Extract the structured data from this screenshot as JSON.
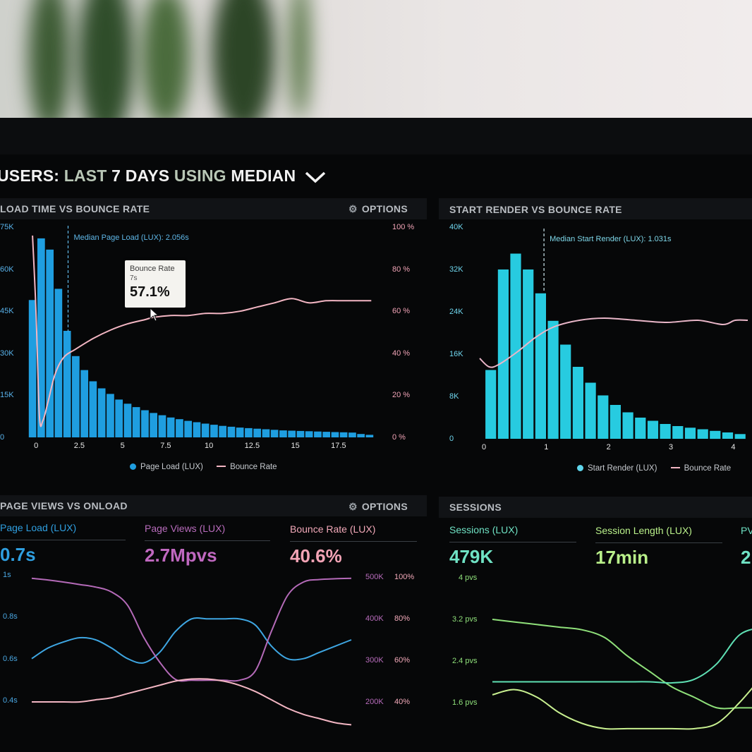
{
  "heading": {
    "users": "USERS:",
    "last": "LAST",
    "days": "7 DAYS",
    "using": "USING",
    "median": "MEDIAN"
  },
  "panels": {
    "load_vs_bounce": {
      "title": "LOAD TIME VS BOUNCE RATE",
      "options": "OPTIONS"
    },
    "start_vs_bounce": {
      "title": "START RENDER VS BOUNCE RATE"
    },
    "views_vs_onload": {
      "title": "PAGE VIEWS VS ONLOAD",
      "options": "OPTIONS"
    },
    "sessions": {
      "title": "SESSIONS"
    }
  },
  "tooltip": {
    "label": "Bounce Rate",
    "sub": "7s",
    "value": "57.1%"
  },
  "metrics_left": [
    {
      "label": "Page Load (LUX)",
      "value": "0.7s",
      "color": "#2f9fe0"
    },
    {
      "label": "Page Views (LUX)",
      "value": "2.7Mpvs",
      "color": "#c068c0"
    },
    {
      "label": "Bounce Rate (LUX)",
      "value": "40.6%",
      "color": "#f2a3b5"
    }
  ],
  "metrics_right": [
    {
      "label": "Sessions (LUX)",
      "value": "479K",
      "color": "#6fe2c4"
    },
    {
      "label": "Session Length (LUX)",
      "value": "17min",
      "color": "#b9f08a"
    },
    {
      "label": "PV",
      "value": "2",
      "color": "#6fe2c4"
    }
  ],
  "colors": {
    "blue": "#1f9ee0",
    "cyan": "#27cbe0",
    "pink": "#f3b6c3",
    "purple": "#b46ab8",
    "green": "#8fe07a",
    "mint": "#5fe0b4",
    "lightblue": "#3ea6e2"
  },
  "chart_data": [
    {
      "type": "bar",
      "title": "LOAD TIME VS BOUNCE RATE",
      "annotation": "Median Page Load (LUX): 2.056s",
      "median_x": 2.056,
      "x_ticks": [
        "0",
        "2.5",
        "5",
        "7.5",
        "10",
        "12.5",
        "15",
        "17.5"
      ],
      "y_ticks_left": [
        "0",
        "15K",
        "30K",
        "45K",
        "60K",
        "75K"
      ],
      "y_ticks_right": [
        "0 %",
        "20 %",
        "40 %",
        "60 %",
        "80 %",
        "100 %"
      ],
      "xlim": [
        -0.25,
        19.75
      ],
      "ylim_left": [
        0,
        75000
      ],
      "ylim_right": [
        0,
        100
      ],
      "legend": [
        "Page Load (LUX)",
        "Bounce Rate"
      ],
      "bin_width": 0.5,
      "x": [
        0,
        0.5,
        1,
        1.5,
        2,
        2.5,
        3,
        3.5,
        4,
        4.5,
        5,
        5.5,
        6,
        6.5,
        7,
        7.5,
        8,
        8.5,
        9,
        9.5,
        10,
        10.5,
        11,
        11.5,
        12,
        12.5,
        13,
        13.5,
        14,
        14.5,
        15,
        15.5,
        16,
        16.5,
        17,
        17.5,
        18,
        18.5,
        19,
        19.5
      ],
      "series": [
        {
          "name": "Page Load (LUX)",
          "values": [
            49000,
            71000,
            67000,
            53000,
            38000,
            29000,
            24000,
            20000,
            17500,
            15500,
            13500,
            12000,
            10800,
            9700,
            8700,
            7900,
            7100,
            6500,
            5900,
            5400,
            4900,
            4500,
            4100,
            3800,
            3500,
            3300,
            3100,
            2900,
            2700,
            2500,
            2400,
            2300,
            2200,
            2100,
            2000,
            1900,
            1800,
            1700,
            1200,
            900
          ]
        },
        {
          "name": "Bounce Rate",
          "x": [
            0,
            0.2,
            0.4,
            0.6,
            0.9,
            1.3,
            1.8,
            2.5,
            3.5,
            4.5,
            5.5,
            6.5,
            7,
            8,
            9,
            10,
            11,
            12,
            13,
            14,
            15,
            16,
            17,
            18,
            19,
            19.6
          ],
          "values": [
            96,
            60,
            10,
            8,
            17,
            30,
            38,
            42,
            47,
            51,
            54,
            56,
            57.1,
            58,
            58,
            59,
            59,
            60,
            62,
            64,
            66,
            64,
            65,
            65,
            65,
            65
          ]
        }
      ]
    },
    {
      "type": "bar",
      "title": "START RENDER VS BOUNCE RATE",
      "annotation": "Median Start Render (LUX): 1.031s",
      "median_x": 1.031,
      "x_ticks": [
        "0",
        "1",
        "2",
        "3",
        "4"
      ],
      "y_ticks_left": [
        "0",
        "8K",
        "16K",
        "24K",
        "32K",
        "40K"
      ],
      "xlim": [
        0,
        4.3
      ],
      "ylim_left": [
        0,
        40000
      ],
      "legend": [
        "Start Render (LUX)",
        "Bounce Rate"
      ],
      "bin_width": 0.2,
      "x": [
        0.2,
        0.4,
        0.6,
        0.8,
        1.0,
        1.2,
        1.4,
        1.6,
        1.8,
        2.0,
        2.2,
        2.4,
        2.6,
        2.8,
        3.0,
        3.2,
        3.4,
        3.6,
        3.8,
        4.0,
        4.2
      ],
      "series": [
        {
          "name": "Start Render (LUX)",
          "values": [
            13000,
            32000,
            35000,
            32000,
            27500,
            22300,
            17800,
            13600,
            10600,
            8200,
            6400,
            5000,
            4000,
            3400,
            2800,
            2400,
            2100,
            1800,
            1500,
            1200,
            900
          ]
        },
        {
          "name": "Bounce Rate",
          "x": [
            0,
            0.15,
            0.3,
            0.6,
            0.9,
            1.2,
            1.6,
            2,
            2.5,
            3,
            3.5,
            3.9,
            4.1,
            4.3
          ],
          "values": [
            38,
            34,
            35,
            41,
            48,
            53,
            56,
            57,
            56,
            55,
            56,
            54,
            56,
            56
          ]
        }
      ]
    },
    {
      "type": "line",
      "title": "PAGE VIEWS VS ONLOAD",
      "y_ticks_left": [
        "0.4s",
        "0.6s",
        "0.8s",
        "1s"
      ],
      "y_ticks_right_views": [
        "200K",
        "300K",
        "400K",
        "500K"
      ],
      "y_ticks_right_rate": [
        "40%",
        "60%",
        "80%",
        "100%"
      ],
      "x": [
        0,
        1,
        2,
        3,
        4,
        5,
        6,
        7,
        8,
        9,
        10,
        11,
        12,
        13,
        14,
        15,
        16,
        17,
        18,
        19,
        20
      ],
      "series": [
        {
          "name": "Page Load (LUX)",
          "values": [
            0.6,
            0.65,
            0.68,
            0.7,
            0.69,
            0.65,
            0.6,
            0.58,
            0.63,
            0.73,
            0.79,
            0.79,
            0.79,
            0.79,
            0.76,
            0.66,
            0.6,
            0.6,
            0.63,
            0.66,
            0.69
          ]
        },
        {
          "name": "Page Views (LUX)",
          "values": [
            497000,
            493000,
            488000,
            482000,
            476000,
            464000,
            432000,
            356000,
            296000,
            254000,
            252000,
            252000,
            252000,
            252000,
            275000,
            370000,
            455000,
            488000,
            494000,
            496000,
            497000
          ]
        },
        {
          "name": "Bounce Rate (LUX)",
          "values": [
            40,
            40,
            40,
            40,
            41,
            42,
            44,
            46,
            48,
            50,
            51,
            51,
            50,
            48,
            45,
            41,
            37,
            34,
            32,
            30,
            29
          ]
        }
      ]
    },
    {
      "type": "line",
      "title": "SESSIONS",
      "y_ticks_left": [
        "1.6 pvs",
        "2.4 pvs",
        "3.2 pvs",
        "4 pvs"
      ],
      "x": [
        0,
        1,
        2,
        3,
        4,
        5,
        6,
        7,
        8,
        9,
        10,
        11,
        12
      ],
      "series": [
        {
          "name": "Sessions (LUX)",
          "values": [
            3.2,
            3.15,
            3.1,
            3.05,
            3.0,
            2.85,
            2.5,
            2.2,
            1.9,
            1.7,
            1.5,
            1.5,
            1.5
          ]
        },
        {
          "name": "Session Length (LUX)",
          "values": [
            2.0,
            2.0,
            2.0,
            2.0,
            2.0,
            2.0,
            2.0,
            2.0,
            1.98,
            2.05,
            2.35,
            2.9,
            3.05
          ]
        },
        {
          "name": "PV",
          "values": [
            1.75,
            1.85,
            1.7,
            1.4,
            1.2,
            1.1,
            1.1,
            1.1,
            1.1,
            1.1,
            1.2,
            1.6,
            2.1
          ]
        }
      ]
    }
  ]
}
